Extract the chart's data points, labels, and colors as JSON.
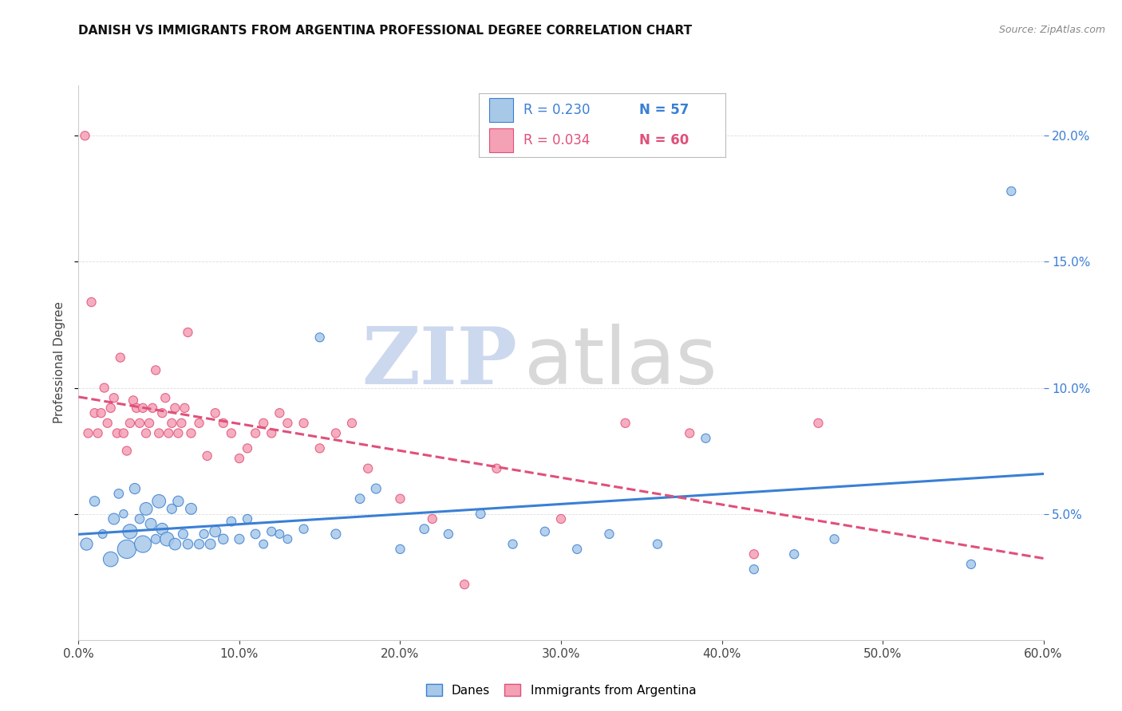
{
  "title": "DANISH VS IMMIGRANTS FROM ARGENTINA PROFESSIONAL DEGREE CORRELATION CHART",
  "source": "Source: ZipAtlas.com",
  "ylabel": "Professional Degree",
  "legend_danes": "Danes",
  "legend_arg": "Immigrants from Argentina",
  "legend_r_danes": "R = 0.230",
  "legend_n_danes": "N = 57",
  "legend_r_arg": "R = 0.034",
  "legend_n_arg": "N = 60",
  "xlim": [
    0.0,
    0.6
  ],
  "ylim": [
    0.0,
    0.22
  ],
  "xticks": [
    0.0,
    0.1,
    0.2,
    0.3,
    0.4,
    0.5,
    0.6
  ],
  "yticks": [
    0.05,
    0.1,
    0.15,
    0.2
  ],
  "color_danes": "#a8c8e8",
  "color_arg": "#f4a0b5",
  "color_danes_line": "#3a7fd4",
  "color_arg_line": "#e0507a",
  "background_color": "#ffffff",
  "danes_x": [
    0.005,
    0.01,
    0.015,
    0.02,
    0.022,
    0.025,
    0.028,
    0.03,
    0.032,
    0.035,
    0.038,
    0.04,
    0.042,
    0.045,
    0.048,
    0.05,
    0.052,
    0.055,
    0.058,
    0.06,
    0.062,
    0.065,
    0.068,
    0.07,
    0.075,
    0.078,
    0.082,
    0.085,
    0.09,
    0.095,
    0.1,
    0.105,
    0.11,
    0.115,
    0.12,
    0.125,
    0.13,
    0.14,
    0.15,
    0.16,
    0.175,
    0.185,
    0.2,
    0.215,
    0.23,
    0.25,
    0.27,
    0.29,
    0.31,
    0.33,
    0.36,
    0.39,
    0.42,
    0.445,
    0.47,
    0.555,
    0.58
  ],
  "danes_y": [
    0.038,
    0.055,
    0.042,
    0.032,
    0.048,
    0.058,
    0.05,
    0.036,
    0.043,
    0.06,
    0.048,
    0.038,
    0.052,
    0.046,
    0.04,
    0.055,
    0.044,
    0.04,
    0.052,
    0.038,
    0.055,
    0.042,
    0.038,
    0.052,
    0.038,
    0.042,
    0.038,
    0.043,
    0.04,
    0.047,
    0.04,
    0.048,
    0.042,
    0.038,
    0.043,
    0.042,
    0.04,
    0.044,
    0.12,
    0.042,
    0.056,
    0.06,
    0.036,
    0.044,
    0.042,
    0.05,
    0.038,
    0.043,
    0.036,
    0.042,
    0.038,
    0.08,
    0.028,
    0.034,
    0.04,
    0.03,
    0.178
  ],
  "danes_size": [
    120,
    80,
    60,
    180,
    100,
    70,
    55,
    280,
    170,
    90,
    70,
    230,
    130,
    100,
    70,
    145,
    110,
    155,
    75,
    110,
    90,
    75,
    80,
    100,
    75,
    65,
    85,
    100,
    80,
    70,
    75,
    65,
    70,
    60,
    65,
    60,
    60,
    65,
    65,
    75,
    70,
    75,
    65,
    70,
    65,
    70,
    65,
    65,
    65,
    65,
    65,
    65,
    65,
    65,
    65,
    65,
    65
  ],
  "arg_x": [
    0.004,
    0.006,
    0.008,
    0.01,
    0.012,
    0.014,
    0.016,
    0.018,
    0.02,
    0.022,
    0.024,
    0.026,
    0.028,
    0.03,
    0.032,
    0.034,
    0.036,
    0.038,
    0.04,
    0.042,
    0.044,
    0.046,
    0.048,
    0.05,
    0.052,
    0.054,
    0.056,
    0.058,
    0.06,
    0.062,
    0.064,
    0.066,
    0.068,
    0.07,
    0.075,
    0.08,
    0.085,
    0.09,
    0.095,
    0.1,
    0.105,
    0.11,
    0.115,
    0.12,
    0.125,
    0.13,
    0.14,
    0.15,
    0.16,
    0.17,
    0.18,
    0.2,
    0.22,
    0.24,
    0.26,
    0.3,
    0.34,
    0.38,
    0.42,
    0.46
  ],
  "arg_y": [
    0.2,
    0.082,
    0.134,
    0.09,
    0.082,
    0.09,
    0.1,
    0.086,
    0.092,
    0.096,
    0.082,
    0.112,
    0.082,
    0.075,
    0.086,
    0.095,
    0.092,
    0.086,
    0.092,
    0.082,
    0.086,
    0.092,
    0.107,
    0.082,
    0.09,
    0.096,
    0.082,
    0.086,
    0.092,
    0.082,
    0.086,
    0.092,
    0.122,
    0.082,
    0.086,
    0.073,
    0.09,
    0.086,
    0.082,
    0.072,
    0.076,
    0.082,
    0.086,
    0.082,
    0.09,
    0.086,
    0.086,
    0.076,
    0.082,
    0.086,
    0.068,
    0.056,
    0.048,
    0.022,
    0.068,
    0.048,
    0.086,
    0.082,
    0.034,
    0.086
  ],
  "arg_size": [
    65,
    65,
    65,
    65,
    65,
    65,
    65,
    65,
    65,
    65,
    65,
    65,
    65,
    65,
    65,
    65,
    65,
    65,
    65,
    65,
    65,
    65,
    65,
    65,
    65,
    65,
    65,
    65,
    65,
    65,
    65,
    65,
    65,
    65,
    65,
    65,
    65,
    65,
    65,
    65,
    65,
    65,
    65,
    65,
    65,
    65,
    65,
    65,
    65,
    65,
    65,
    65,
    65,
    65,
    65,
    65,
    65,
    65,
    65,
    65
  ],
  "watermark_zip_color": "#ccd8ee",
  "watermark_atlas_color": "#c8c8c8",
  "title_fontsize": 11,
  "source_fontsize": 9,
  "tick_fontsize": 11,
  "ylabel_fontsize": 11
}
